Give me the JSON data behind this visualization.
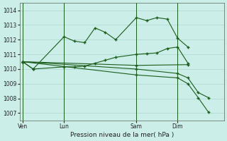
{
  "xlabel": "Pression niveau de la mer( hPa )",
  "background_color": "#cceee8",
  "grid_color": "#aad8d0",
  "line_color": "#1a5c1a",
  "ylim": [
    1006.5,
    1014.5
  ],
  "yticks": [
    1007,
    1008,
    1009,
    1010,
    1011,
    1012,
    1013,
    1014
  ],
  "xtick_labels": [
    "Ven",
    "Lun",
    "Sam",
    "Dim"
  ],
  "xtick_positions": [
    0,
    4,
    11,
    15
  ],
  "vlines": [
    0,
    4,
    11,
    15
  ],
  "xlim": [
    -0.3,
    19.5
  ],
  "series": [
    {
      "x": [
        0,
        1,
        4,
        5,
        6,
        7,
        8,
        9,
        11,
        12,
        13,
        14,
        15,
        16
      ],
      "y": [
        1010.5,
        1010.0,
        1012.2,
        1011.9,
        1011.8,
        1012.8,
        1012.5,
        1012.0,
        1013.5,
        1013.3,
        1013.5,
        1013.4,
        1012.1,
        1011.5
      ]
    },
    {
      "x": [
        0,
        1,
        4,
        5,
        6,
        7,
        8,
        9,
        11,
        12,
        13,
        14,
        15,
        16
      ],
      "y": [
        1010.5,
        1010.0,
        1010.15,
        1010.15,
        1010.2,
        1010.4,
        1010.6,
        1010.8,
        1011.0,
        1011.05,
        1011.1,
        1011.4,
        1011.5,
        1010.4
      ]
    },
    {
      "x": [
        0,
        11,
        16
      ],
      "y": [
        1010.5,
        1010.25,
        1010.3
      ]
    },
    {
      "x": [
        0,
        11,
        15,
        16,
        17,
        18
      ],
      "y": [
        1010.5,
        1009.6,
        1009.4,
        1009.0,
        1008.05,
        1007.05
      ]
    },
    {
      "x": [
        0,
        11,
        15,
        16,
        17,
        18
      ],
      "y": [
        1010.5,
        1010.0,
        1009.7,
        1009.4,
        1008.4,
        1008.05
      ]
    }
  ]
}
